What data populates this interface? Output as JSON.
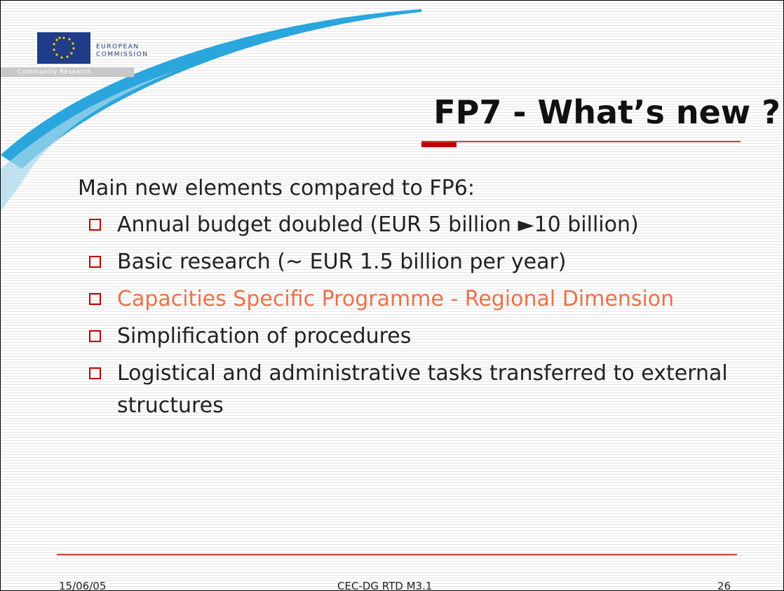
{
  "logo": {
    "line1": "EUROPEAN",
    "line2": "COMMISSION",
    "strip": "Community Research"
  },
  "title": "FP7 - What’s new ?",
  "intro": "Main new elements compared to FP6:",
  "bullets": [
    {
      "text": "Annual budget doubled (EUR 5 billion ►10 billion)",
      "color": "#222222"
    },
    {
      "text": "Basic research (~ EUR 1.5 billion per year)",
      "color": "#222222"
    },
    {
      "text": "Capacities Specific Programme - Regional Dimension",
      "color": "#e8734a"
    },
    {
      "text": "Simplification of procedures",
      "color": "#222222"
    },
    {
      "text": "Logistical and administrative tasks transferred to external structures",
      "color": "#222222"
    }
  ],
  "footer": {
    "date": "15/06/05",
    "center": "CEC-DG RTD M3.1",
    "page": 26
  }
}
